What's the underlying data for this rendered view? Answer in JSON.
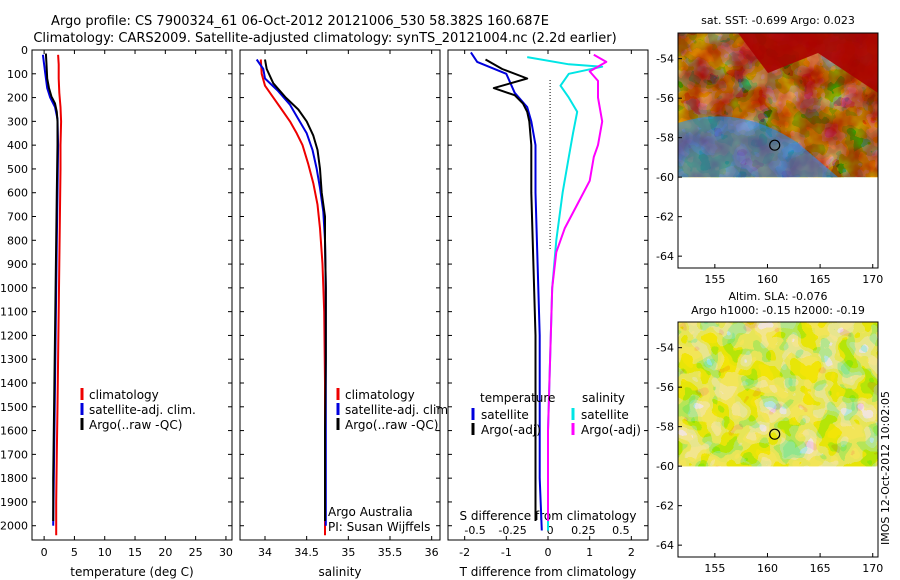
{
  "header": {
    "title_line1": "Argo profile: CS 7900324_61 06-Oct-2012 20121006_530 58.382S 160.687E",
    "title_line2": "Climatology: CARS2009. Satellite-adjusted climatology: synTS_20121004.nc (2.2d earlier)"
  },
  "side_stamp": "IMOS 12-Oct-2012 10:02:05",
  "chart_data": [
    {
      "id": "temperature",
      "type": "line",
      "xlabel": "temperature (deg C)",
      "ylabel": "",
      "xlim": [
        -2,
        31
      ],
      "ylim": [
        2060,
        0
      ],
      "xticks": [
        0,
        5,
        10,
        15,
        20,
        25,
        30
      ],
      "yticks": [
        0,
        100,
        200,
        300,
        400,
        500,
        600,
        700,
        800,
        900,
        1000,
        1100,
        1200,
        1300,
        1400,
        1500,
        1600,
        1700,
        1800,
        1900,
        2000
      ],
      "legend": {
        "entries": [
          "climatology",
          "satellite-adj. clim.",
          "Argo(..raw -QC)"
        ]
      },
      "series": [
        {
          "name": "climatology",
          "color": "#ee0000",
          "points": [
            [
              2.3,
              20
            ],
            [
              2.4,
              60
            ],
            [
              2.4,
              120
            ],
            [
              2.5,
              180
            ],
            [
              2.7,
              240
            ],
            [
              2.8,
              300
            ],
            [
              2.7,
              400
            ],
            [
              2.7,
              500
            ],
            [
              2.6,
              700
            ],
            [
              2.5,
              900
            ],
            [
              2.4,
              1100
            ],
            [
              2.3,
              1300
            ],
            [
              2.2,
              1500
            ],
            [
              2.1,
              1700
            ],
            [
              2.0,
              1900
            ],
            [
              2.0,
              2040
            ]
          ]
        },
        {
          "name": "satellite-adj. clim.",
          "color": "#0000dd",
          "points": [
            [
              -0.2,
              20
            ],
            [
              0.0,
              60
            ],
            [
              0.2,
              100
            ],
            [
              0.5,
              160
            ],
            [
              1.0,
              200
            ],
            [
              1.8,
              240
            ],
            [
              2.2,
              290
            ],
            [
              2.3,
              400
            ],
            [
              2.2,
              600
            ],
            [
              2.1,
              800
            ],
            [
              2.0,
              1000
            ],
            [
              1.9,
              1200
            ],
            [
              1.8,
              1400
            ],
            [
              1.7,
              1600
            ],
            [
              1.6,
              1800
            ],
            [
              1.5,
              2000
            ]
          ]
        },
        {
          "name": "Argo(..raw -QC)",
          "color": "#000000",
          "points": [
            [
              0.3,
              15
            ],
            [
              0.4,
              60
            ],
            [
              0.5,
              120
            ],
            [
              0.8,
              160
            ],
            [
              1.2,
              195
            ],
            [
              1.8,
              225
            ],
            [
              2.1,
              260
            ],
            [
              2.2,
              300
            ],
            [
              2.2,
              400
            ],
            [
              2.1,
              600
            ],
            [
              2.0,
              800
            ],
            [
              1.9,
              1000
            ],
            [
              1.8,
              1200
            ],
            [
              1.7,
              1400
            ],
            [
              1.6,
              1600
            ],
            [
              1.5,
              1800
            ],
            [
              1.5,
              1980
            ]
          ]
        }
      ]
    },
    {
      "id": "salinity",
      "type": "line",
      "xlabel": "salinity",
      "ylabel": "",
      "xlim": [
        33.7,
        36.1
      ],
      "ylim": [
        2060,
        0
      ],
      "xticks": [
        34,
        34.5,
        35,
        35.5,
        36
      ],
      "xticklabels": [
        "34",
        "34.5",
        "35",
        "35.5",
        "36"
      ],
      "legend": {
        "entries": [
          "climatology",
          "satellite-adj. clim.",
          "Argo(..raw -QC)"
        ]
      },
      "annotations": [
        "Argo Australia",
        "PI: Susan Wijffels"
      ],
      "series": [
        {
          "name": "climatology",
          "color": "#ee0000",
          "points": [
            [
              33.95,
              40
            ],
            [
              33.96,
              100
            ],
            [
              34.0,
              150
            ],
            [
              34.1,
              200
            ],
            [
              34.2,
              250
            ],
            [
              34.3,
              300
            ],
            [
              34.38,
              350
            ],
            [
              34.45,
              400
            ],
            [
              34.52,
              480
            ],
            [
              34.58,
              560
            ],
            [
              34.63,
              650
            ],
            [
              34.66,
              750
            ],
            [
              34.69,
              900
            ],
            [
              34.71,
              1100
            ],
            [
              34.72,
              1400
            ],
            [
              34.72,
              1700
            ],
            [
              34.72,
              2040
            ]
          ]
        },
        {
          "name": "satellite-adj. clim.",
          "color": "#0000dd",
          "points": [
            [
              33.9,
              40
            ],
            [
              33.98,
              80
            ],
            [
              34.0,
              120
            ],
            [
              34.15,
              170
            ],
            [
              34.3,
              230
            ],
            [
              34.4,
              290
            ],
            [
              34.5,
              350
            ],
            [
              34.57,
              420
            ],
            [
              34.62,
              500
            ],
            [
              34.66,
              580
            ],
            [
              34.7,
              680
            ],
            [
              34.72,
              800
            ],
            [
              34.73,
              1000
            ],
            [
              34.73,
              1300
            ],
            [
              34.73,
              1600
            ],
            [
              34.73,
              1900
            ],
            [
              34.73,
              2000
            ]
          ]
        },
        {
          "name": "Argo(..raw -QC)",
          "color": "#000000",
          "points": [
            [
              34.0,
              40
            ],
            [
              34.02,
              80
            ],
            [
              34.1,
              140
            ],
            [
              34.25,
              200
            ],
            [
              34.4,
              250
            ],
            [
              34.5,
              300
            ],
            [
              34.58,
              360
            ],
            [
              34.63,
              420
            ],
            [
              34.66,
              500
            ],
            [
              34.68,
              600
            ],
            [
              34.72,
              700
            ],
            [
              34.72,
              800
            ],
            [
              34.73,
              1000
            ],
            [
              34.73,
              1300
            ],
            [
              34.72,
              1600
            ],
            [
              34.72,
              1900
            ],
            [
              34.72,
              1980
            ]
          ]
        }
      ]
    },
    {
      "id": "difference",
      "type": "line",
      "xlabel": "T difference from climatology",
      "x2label": "S difference from climatology",
      "xlim": [
        -2.4,
        2.4
      ],
      "ylim": [
        2060,
        0
      ],
      "xticks": [
        -2,
        -1,
        0,
        1,
        2
      ],
      "x2ticks": [
        -0.5,
        -0.25,
        0,
        0.25,
        0.5
      ],
      "x2tickpos": [
        -1.75,
        -0.85,
        0.05,
        0.85,
        1.75
      ],
      "legend": {
        "titles": [
          "temperature",
          "salinity"
        ],
        "entries": [
          "satellite",
          "Argo(-adj)",
          "satellite",
          "Argo(-adj)"
        ]
      },
      "series": [
        {
          "name": "satellite",
          "group": "temperature",
          "color": "#0000dd",
          "points": [
            [
              -1.85,
              10
            ],
            [
              -1.7,
              50
            ],
            [
              -1.0,
              100
            ],
            [
              -0.8,
              180
            ],
            [
              -0.5,
              240
            ],
            [
              -0.4,
              300
            ],
            [
              -0.3,
              400
            ],
            [
              -0.3,
              600
            ],
            [
              -0.25,
              900
            ],
            [
              -0.2,
              1200
            ],
            [
              -0.2,
              1500
            ],
            [
              -0.2,
              1800
            ],
            [
              -0.15,
              2020
            ]
          ]
        },
        {
          "name": "Argo(-adj)",
          "group": "temperature",
          "color": "#000000",
          "points": [
            [
              -1.5,
              40
            ],
            [
              -1.1,
              80
            ],
            [
              -0.5,
              120
            ],
            [
              -1.3,
              160
            ],
            [
              -0.8,
              190
            ],
            [
              -0.6,
              225
            ],
            [
              -0.5,
              260
            ],
            [
              -0.45,
              300
            ],
            [
              -0.4,
              400
            ],
            [
              -0.4,
              600
            ],
            [
              -0.35,
              900
            ],
            [
              -0.3,
              1200
            ],
            [
              -0.3,
              1500
            ],
            [
              -0.3,
              1800
            ],
            [
              -0.3,
              1980
            ]
          ]
        },
        {
          "name": "satellite",
          "group": "salinity",
          "color": "#00e5e5",
          "points": [
            [
              -0.5,
              30
            ],
            [
              0.5,
              60
            ],
            [
              1.3,
              70
            ],
            [
              0.5,
              100
            ],
            [
              0.3,
              150
            ],
            [
              0.5,
              200
            ],
            [
              0.7,
              260
            ],
            [
              0.6,
              350
            ],
            [
              0.5,
              450
            ],
            [
              0.35,
              600
            ],
            [
              0.2,
              800
            ],
            [
              0.1,
              1000
            ],
            [
              0.05,
              1300
            ],
            [
              0.0,
              1600
            ],
            [
              0.0,
              1900
            ],
            [
              0.0,
              2020
            ]
          ]
        },
        {
          "name": "Argo(-adj)",
          "group": "salinity",
          "color": "#ff00ff",
          "points": [
            [
              1.1,
              20
            ],
            [
              1.4,
              50
            ],
            [
              1.0,
              90
            ],
            [
              1.2,
              130
            ],
            [
              1.2,
              200
            ],
            [
              1.3,
              300
            ],
            [
              1.2,
              400
            ],
            [
              1.1,
              450
            ],
            [
              1.0,
              550
            ],
            [
              0.7,
              650
            ],
            [
              0.4,
              750
            ],
            [
              0.2,
              850
            ],
            [
              0.1,
              1000
            ],
            [
              0.05,
              1300
            ],
            [
              0.0,
              1600
            ],
            [
              0.0,
              1900
            ],
            [
              0.0,
              1980
            ]
          ]
        }
      ]
    },
    {
      "id": "sst-map",
      "type": "heatmap",
      "title": "sat. SST: -0.699 Argo: 0.023",
      "xlim": [
        151.5,
        170.5
      ],
      "ylim": [
        -64.6,
        -52.7
      ],
      "xticks": [
        155,
        160,
        165,
        170
      ],
      "yticks": [
        -54,
        -56,
        -58,
        -60,
        -62,
        -64
      ],
      "argo_position": [
        160.687,
        -58.382
      ]
    },
    {
      "id": "sla-map",
      "type": "heatmap",
      "title": "Altim. SLA: -0.076",
      "subtitle": "Argo h1000: -0.15 h2000: -0.19",
      "xlim": [
        151.5,
        170.5
      ],
      "ylim": [
        -64.6,
        -52.7
      ],
      "xticks": [
        155,
        160,
        165,
        170
      ],
      "yticks": [
        -54,
        -56,
        -58,
        -60,
        -62,
        -64
      ],
      "argo_position": [
        160.687,
        -58.382
      ]
    }
  ]
}
